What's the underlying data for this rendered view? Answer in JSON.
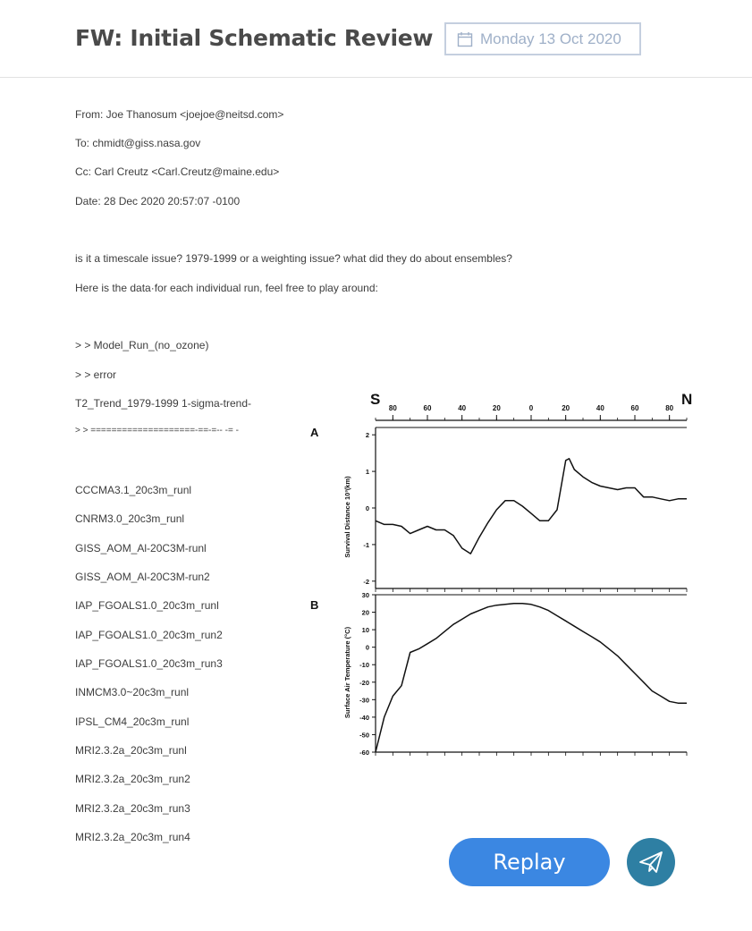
{
  "header": {
    "title": "FW: Initial Schematic Review",
    "date": "Monday 13 Oct 2020"
  },
  "email": {
    "from": "From: Joe Thanosum <joejoe@neitsd.com>",
    "to": "To: chmidt@giss.nasa.gov",
    "cc": "Cc: Carl Creutz <Carl.Creutz@maine.edu>",
    "date": "Date: 28 Dec 2020 20:57:07 -0100",
    "body": [
      "is it a timescale issue? 1979-1999 or a weighting issue? what did they do about ensembles?",
      "Here is the data·for each individual run, feel free to play around:",
      "> > Model_Run_(no_ozone)",
      "> > error",
      "T2_Trend_1979-1999 1-sigma-trend-",
      "> > ====================-==-=-- -= -"
    ],
    "runs": [
      "CCCMA3.1_20c3m_runl",
      "CNRM3.0_20c3m_runl",
      "GISS_AOM_Al-20C3M-runl",
      "GISS_AOM_Al-20C3M-run2",
      "IAP_FGOALS1.0_20c3m_runl",
      "IAP_FGOALS1.0_20c3m_run2",
      "IAP_FGOALS1.0_20c3m_run3",
      "INMCM3.0~20c3m_runl",
      "IPSL_CM4_20c3m_runl",
      "MRI2.3.2a_20c3m_runl",
      "MRI2.3.2a_20c3m_run2",
      "MRI2.3.2a_20c3m_run3",
      "MRI2.3.2a_20c3m_run4"
    ]
  },
  "figure": {
    "label_s": "S",
    "label_n": "N",
    "lat_ticks": [
      "80",
      "60",
      "40",
      "20",
      "0",
      "20",
      "40",
      "60",
      "80"
    ],
    "panel_a_label": "A",
    "panel_b_label": "B",
    "panel_a_ylabel": "Survival Distance 10³(km)",
    "panel_b_ylabel": "Surface Air Temperature (°C)",
    "panel_a_yticks": [
      "2",
      "1",
      "0",
      "-1",
      "-2"
    ],
    "panel_b_yticks": [
      "30",
      "20",
      "10",
      "0",
      "-10",
      "-20",
      "-30",
      "-40",
      "-50",
      "-60"
    ]
  },
  "chart_data": [
    {
      "type": "line",
      "panel": "A",
      "ylabel": "Survival Distance 10³(km)",
      "xlim": [
        -90,
        90
      ],
      "ylim": [
        -2.2,
        2.2
      ],
      "x": [
        -90,
        -85,
        -80,
        -75,
        -70,
        -65,
        -60,
        -55,
        -50,
        -45,
        -40,
        -35,
        -30,
        -25,
        -20,
        -15,
        -10,
        -5,
        0,
        5,
        10,
        15,
        20,
        22,
        25,
        30,
        35,
        40,
        45,
        50,
        55,
        60,
        65,
        70,
        75,
        80,
        85,
        90
      ],
      "y": [
        -0.35,
        -0.45,
        -0.45,
        -0.5,
        -0.7,
        -0.6,
        -0.5,
        -0.6,
        -0.6,
        -0.75,
        -1.1,
        -1.25,
        -0.8,
        -0.4,
        -0.05,
        0.2,
        0.2,
        0.05,
        -0.15,
        -0.35,
        -0.35,
        -0.05,
        1.3,
        1.35,
        1.05,
        0.85,
        0.7,
        0.6,
        0.55,
        0.5,
        0.55,
        0.55,
        0.3,
        0.3,
        0.25,
        0.2,
        0.25,
        0.25
      ]
    },
    {
      "type": "line",
      "panel": "B",
      "ylabel": "Surface Air Temperature (°C)",
      "xlim": [
        -90,
        90
      ],
      "ylim": [
        -60,
        30
      ],
      "x": [
        -90,
        -85,
        -80,
        -75,
        -70,
        -65,
        -60,
        -55,
        -50,
        -45,
        -40,
        -35,
        -30,
        -25,
        -20,
        -15,
        -10,
        -5,
        0,
        5,
        10,
        15,
        20,
        25,
        30,
        35,
        40,
        45,
        50,
        55,
        60,
        65,
        70,
        75,
        80,
        85,
        90
      ],
      "y": [
        -60,
        -40,
        -28,
        -22,
        -3,
        -1,
        2,
        5,
        9,
        13,
        16,
        19,
        21,
        23,
        24,
        24.5,
        25,
        25,
        24.5,
        23,
        21,
        18,
        15,
        12,
        9,
        6,
        3,
        -1,
        -5,
        -10,
        -15,
        -20,
        -25,
        -28,
        -31,
        -32,
        -32
      ]
    }
  ],
  "actions": {
    "replay_label": "Replay"
  }
}
